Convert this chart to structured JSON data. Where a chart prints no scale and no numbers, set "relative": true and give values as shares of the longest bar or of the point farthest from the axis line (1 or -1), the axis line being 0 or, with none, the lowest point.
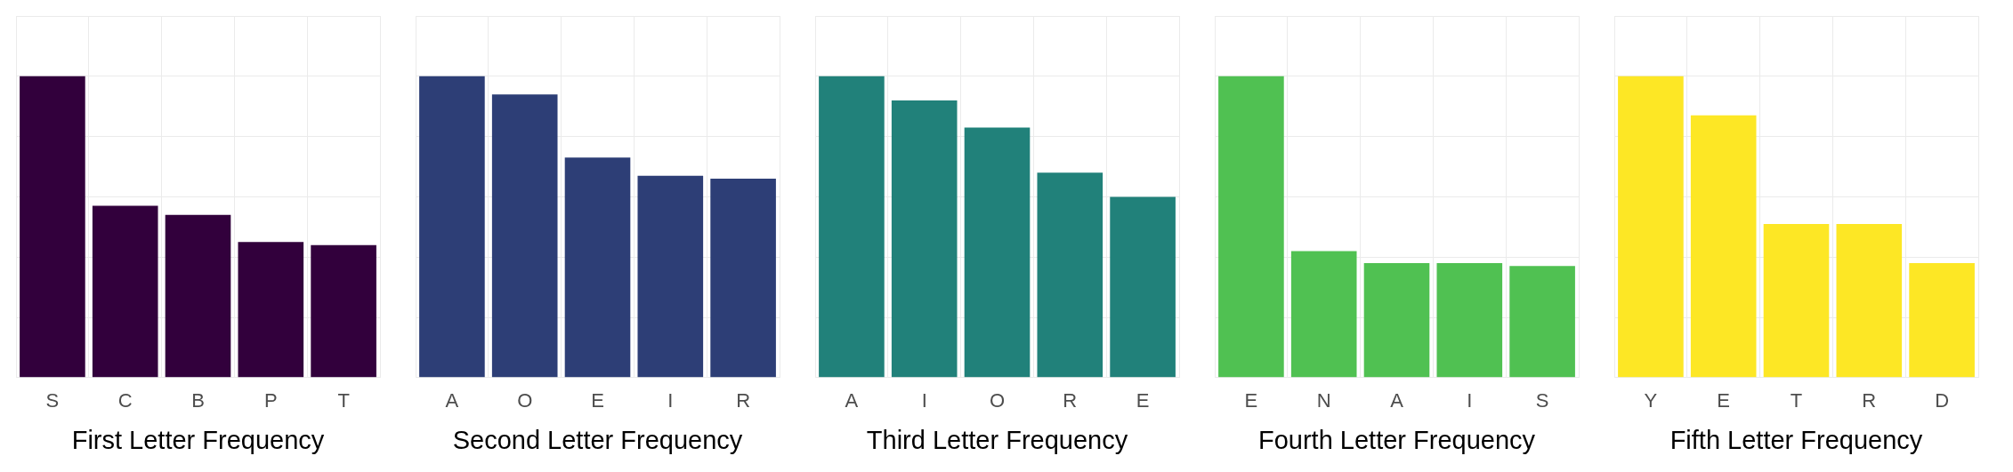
{
  "chart_data": [
    {
      "type": "bar",
      "xlabel": "First Letter Frequency",
      "categories": [
        "S",
        "C",
        "B",
        "P",
        "T"
      ],
      "values": [
        1,
        0.57,
        0.54,
        0.45,
        0.44
      ],
      "color": "#32003c",
      "relative": true,
      "grid": true
    },
    {
      "type": "bar",
      "xlabel": "Second Letter Frequency",
      "categories": [
        "A",
        "O",
        "E",
        "I",
        "R"
      ],
      "values": [
        1,
        0.94,
        0.73,
        0.67,
        0.66
      ],
      "color": "#2d3e76",
      "relative": true,
      "grid": true
    },
    {
      "type": "bar",
      "xlabel": "Third Letter Frequency",
      "categories": [
        "A",
        "I",
        "O",
        "R",
        "E"
      ],
      "values": [
        1,
        0.92,
        0.83,
        0.68,
        0.6
      ],
      "color": "#21817a",
      "relative": true,
      "grid": true
    },
    {
      "type": "bar",
      "xlabel": "Fourth Letter Frequency",
      "categories": [
        "E",
        "N",
        "A",
        "I",
        "S"
      ],
      "values": [
        1,
        0.42,
        0.38,
        0.38,
        0.37
      ],
      "color": "#50c152",
      "relative": true,
      "grid": true
    },
    {
      "type": "bar",
      "xlabel": "Fifth Letter Frequency",
      "categories": [
        "Y",
        "E",
        "T",
        "R",
        "D"
      ],
      "values": [
        1,
        0.87,
        0.51,
        0.51,
        0.38
      ],
      "color": "#fde725",
      "relative": true,
      "grid": true
    }
  ]
}
